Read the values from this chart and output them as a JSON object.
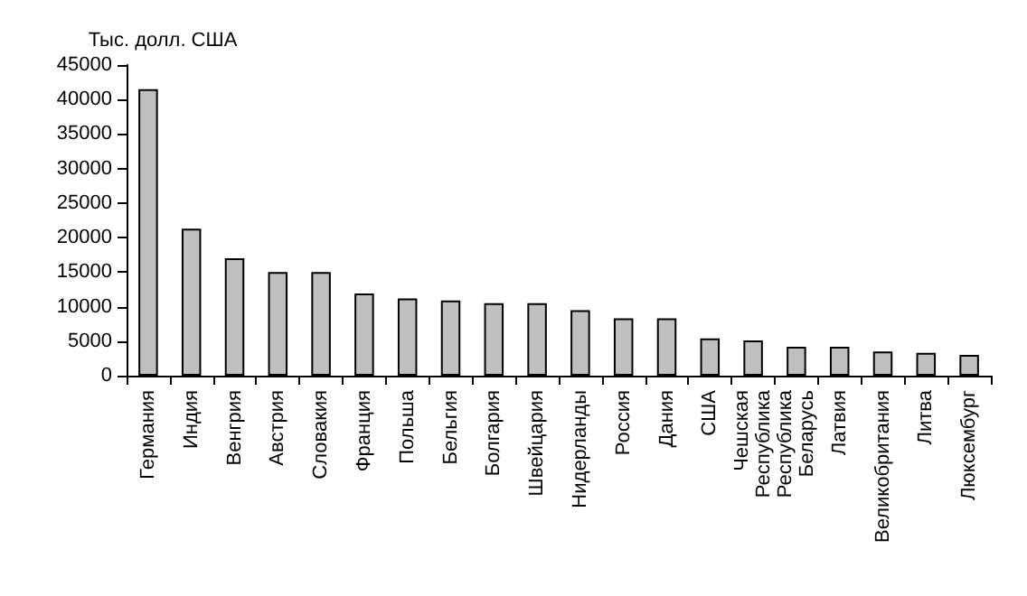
{
  "chart_data": {
    "type": "bar",
    "ylabel": "Тыс. долл. США",
    "categories": [
      "Германия",
      "Индия",
      "Венгрия",
      "Австрия",
      "Словакия",
      "Франция",
      "Польша",
      "Бельгия",
      "Болгария",
      "Швейцария",
      "Нидерланды",
      "Россия",
      "Дания",
      "США",
      "Чешская\nРеспублика",
      "Республика\nБеларусь",
      "Латвия",
      "Великобритания",
      "Литва",
      "Люксембург"
    ],
    "values": [
      41500,
      21300,
      17000,
      15000,
      15000,
      11900,
      11200,
      10900,
      10500,
      10500,
      9500,
      8300,
      8300,
      5400,
      5100,
      4200,
      4200,
      3500,
      3300,
      3000
    ],
    "color": "#c0c0c0",
    "ylim": [
      0,
      45000
    ],
    "yticks": [
      0,
      5000,
      10000,
      15000,
      20000,
      25000,
      30000,
      35000,
      40000,
      45000
    ],
    "grid": false
  }
}
